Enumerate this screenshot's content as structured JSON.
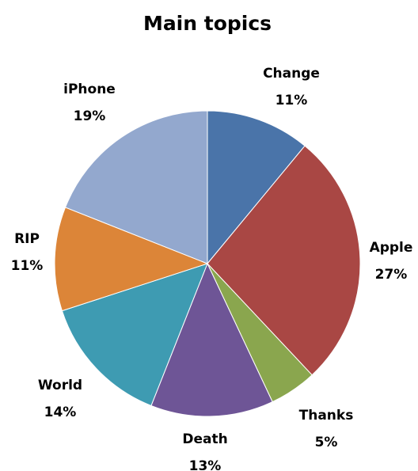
{
  "chart_data": {
    "type": "pie",
    "title": "Main topics",
    "slices": [
      {
        "label": "Change",
        "value": 11,
        "display": "11%",
        "color": "#4a74a9"
      },
      {
        "label": "Apple",
        "value": 27,
        "display": "27%",
        "color": "#a94744"
      },
      {
        "label": "Thanks",
        "value": 5,
        "display": "5%",
        "color": "#8aa64e"
      },
      {
        "label": "Death",
        "value": 13,
        "display": "13%",
        "color": "#6e5596"
      },
      {
        "label": "World",
        "value": 14,
        "display": "14%",
        "color": "#3e9bb2"
      },
      {
        "label": "RIP",
        "value": 11,
        "display": "11%",
        "color": "#dc8538"
      },
      {
        "label": "iPhone",
        "value": 19,
        "display": "19%",
        "color": "#93a8ce"
      }
    ],
    "start_direction": "12 o'clock",
    "direction": "clockwise",
    "legend": "none"
  }
}
